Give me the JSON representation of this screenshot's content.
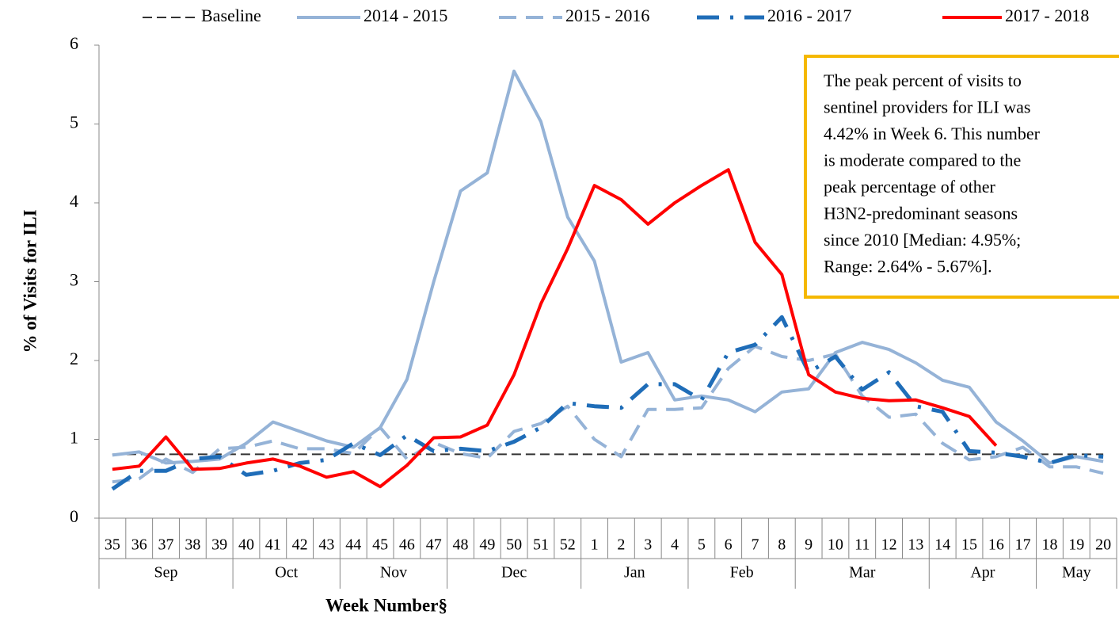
{
  "chart_data": {
    "type": "line",
    "y_label": "% of Visits for ILI",
    "x_label": "Week Number§",
    "categories": [
      "35",
      "36",
      "37",
      "38",
      "39",
      "40",
      "41",
      "42",
      "43",
      "44",
      "45",
      "46",
      "47",
      "48",
      "49",
      "50",
      "51",
      "52",
      "1",
      "2",
      "3",
      "4",
      "5",
      "6",
      "7",
      "8",
      "9",
      "10",
      "11",
      "12",
      "13",
      "14",
      "15",
      "16",
      "17",
      "18",
      "19",
      "20"
    ],
    "months": [
      "Sep",
      null,
      null,
      null,
      null,
      "Oct",
      null,
      null,
      null,
      "Nov",
      null,
      null,
      null,
      "Dec",
      null,
      null,
      null,
      null,
      "Jan",
      null,
      null,
      null,
      "Feb",
      null,
      null,
      null,
      "Mar",
      null,
      null,
      null,
      null,
      "Apr",
      null,
      null,
      null,
      "May",
      null,
      null
    ],
    "ylim": [
      0,
      6
    ],
    "yticks": [
      0,
      1,
      2,
      3,
      4,
      5,
      6
    ],
    "series": [
      {
        "name": "Baseline",
        "color": "#333333",
        "dash": "12,6",
        "width": 2,
        "values": [
          0.81,
          0.81,
          0.81,
          0.81,
          0.81,
          0.81,
          0.81,
          0.81,
          0.81,
          0.81,
          0.81,
          0.81,
          0.81,
          0.81,
          0.81,
          0.81,
          0.81,
          0.81,
          0.81,
          0.81,
          0.81,
          0.81,
          0.81,
          0.81,
          0.81,
          0.81,
          0.81,
          0.81,
          0.81,
          0.81,
          0.81,
          0.81,
          0.81,
          0.81,
          0.81,
          0.81,
          0.81,
          0.81
        ]
      },
      {
        "name": "2014 - 2015",
        "color": "#95b3d7",
        "dash": "none",
        "width": 4,
        "values": [
          0.8,
          0.84,
          0.7,
          0.72,
          0.75,
          0.95,
          1.22,
          1.1,
          0.98,
          0.9,
          1.15,
          1.76,
          3.0,
          4.15,
          4.38,
          5.67,
          5.03,
          3.82,
          3.26,
          1.98,
          2.1,
          1.5,
          1.55,
          1.5,
          1.35,
          1.6,
          1.64,
          2.1,
          2.23,
          2.14,
          1.97,
          1.75,
          1.66,
          1.22,
          0.98,
          0.7,
          0.78,
          0.72
        ]
      },
      {
        "name": "2015 - 2016",
        "color": "#95b3d7",
        "dash": "22,12",
        "width": 4,
        "values": [
          0.46,
          0.5,
          0.75,
          0.58,
          0.88,
          0.9,
          0.98,
          0.88,
          0.88,
          0.82,
          1.15,
          0.75,
          0.96,
          0.82,
          0.76,
          1.1,
          1.2,
          1.42,
          1.0,
          0.78,
          1.38,
          1.38,
          1.4,
          1.9,
          2.18,
          2.05,
          2.0,
          2.08,
          1.55,
          1.28,
          1.32,
          0.95,
          0.74,
          0.78,
          0.9,
          0.65,
          0.65,
          0.57
        ]
      },
      {
        "name": "2016 - 2017",
        "color": "#1f6db8",
        "dash": "28,14,4,14",
        "width": 5,
        "values": [
          0.37,
          0.6,
          0.6,
          0.75,
          0.78,
          0.55,
          0.6,
          0.7,
          0.74,
          0.95,
          0.8,
          1.05,
          0.85,
          0.88,
          0.85,
          0.97,
          1.15,
          1.46,
          1.42,
          1.4,
          1.7,
          1.7,
          1.5,
          2.1,
          2.2,
          2.55,
          1.85,
          2.05,
          1.63,
          1.85,
          1.42,
          1.35,
          0.85,
          0.83,
          0.78,
          0.7,
          0.8,
          0.78
        ]
      },
      {
        "name": "2017 - 2018",
        "color": "#ff0000",
        "dash": "none",
        "width": 4,
        "values": [
          0.62,
          0.66,
          1.03,
          0.62,
          0.63,
          0.7,
          0.75,
          0.66,
          0.52,
          0.59,
          0.4,
          0.67,
          1.02,
          1.03,
          1.18,
          1.82,
          2.72,
          3.42,
          4.22,
          4.04,
          3.73,
          4.0,
          4.22,
          4.42,
          3.5,
          3.09,
          1.82,
          1.6,
          1.52,
          1.49,
          1.5,
          1.4,
          1.29,
          0.92,
          null,
          null,
          null,
          null
        ]
      }
    ],
    "annotation": [
      "The peak percent of visits to",
      "sentinel providers for ILI was",
      "4.42% in Week 6. This number",
      "is moderate compared to the",
      "peak percentage of other",
      "H3N2-predominant seasons",
      "since 2010 [Median: 4.95%;",
      "Range: 2.64% - 5.67%]."
    ]
  }
}
